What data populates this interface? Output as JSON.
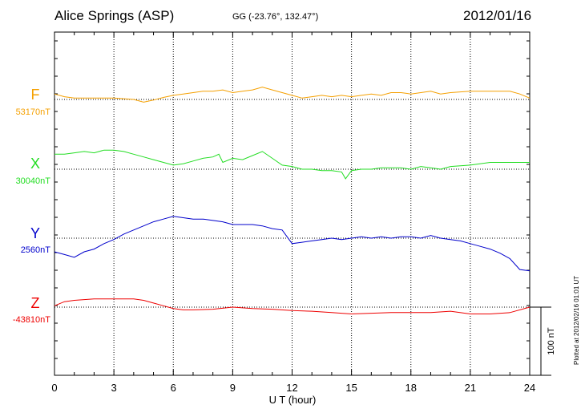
{
  "header": {
    "station": "Alice Springs (ASP)",
    "coords": "GG (-23.76°, 132.47°)",
    "date": "2012/01/16"
  },
  "plotted_note": "Plotted at 2012/02/16 01:01 UT",
  "scale_label": "100 nT",
  "chart_data": {
    "type": "line",
    "xlabel": "U T (hour)",
    "xlim": [
      0,
      24
    ],
    "xticks": [
      "0",
      "3",
      "6",
      "9",
      "12",
      "15",
      "18",
      "21",
      "24"
    ],
    "scale_bar_nT": 100,
    "grid": true,
    "series": [
      {
        "name": "F",
        "baseline_label": "53170nT",
        "color": "#f5a000",
        "x": [
          0,
          0.5,
          1,
          2,
          3,
          4,
          4.5,
          5,
          5.5,
          6,
          6.5,
          7,
          7.5,
          8,
          8.5,
          9,
          9.5,
          10,
          10.5,
          11,
          11.5,
          12,
          12.5,
          13,
          13.5,
          14,
          14.5,
          15,
          15.5,
          16,
          16.5,
          17,
          17.5,
          18,
          18.5,
          19,
          19.5,
          20,
          21,
          22,
          23,
          23.5,
          24
        ],
        "y": [
          8,
          4,
          2,
          2,
          2,
          0,
          -4,
          -1,
          3,
          6,
          8,
          10,
          12,
          12,
          14,
          10,
          12,
          14,
          18,
          14,
          10,
          6,
          2,
          4,
          6,
          4,
          6,
          4,
          6,
          8,
          6,
          10,
          10,
          8,
          10,
          12,
          8,
          10,
          12,
          12,
          12,
          8,
          2
        ]
      },
      {
        "name": "X",
        "baseline_label": "30040nT",
        "color": "#22dd22",
        "x": [
          0,
          0.5,
          1,
          1.5,
          2,
          2.5,
          3,
          3.5,
          4,
          4.5,
          5,
          5.5,
          6,
          6.5,
          7,
          7.5,
          8,
          8.3,
          8.5,
          9,
          9.5,
          10,
          10.5,
          11,
          11.5,
          12,
          12.5,
          13,
          13.5,
          14,
          14.5,
          14.7,
          15,
          15.5,
          16,
          16.5,
          17,
          17.5,
          18,
          18.5,
          19,
          19.5,
          20,
          21,
          22,
          23,
          24
        ],
        "y": [
          22,
          22,
          24,
          26,
          24,
          28,
          28,
          26,
          22,
          18,
          14,
          10,
          6,
          8,
          12,
          16,
          18,
          22,
          10,
          16,
          14,
          20,
          26,
          16,
          6,
          4,
          0,
          0,
          -2,
          -2,
          -4,
          -14,
          -2,
          0,
          0,
          2,
          2,
          2,
          0,
          4,
          2,
          0,
          4,
          6,
          10,
          10,
          10
        ]
      },
      {
        "name": "Y",
        "baseline_label": "2560nT",
        "color": "#0000cc",
        "x": [
          0,
          0.5,
          1,
          1.5,
          2,
          2.5,
          3,
          3.5,
          4,
          4.5,
          5,
          5.5,
          6,
          6.5,
          7,
          7.5,
          8,
          8.5,
          9,
          9.5,
          10,
          10.5,
          11,
          11.5,
          12,
          12.5,
          13,
          13.5,
          14,
          14.5,
          15,
          15.5,
          16,
          16.5,
          17,
          17.5,
          18,
          18.5,
          19,
          19.5,
          20,
          20.5,
          21,
          21.5,
          22,
          22.5,
          23,
          23.5,
          24
        ],
        "y": [
          -20,
          -24,
          -28,
          -20,
          -16,
          -8,
          -2,
          6,
          12,
          18,
          24,
          28,
          32,
          30,
          28,
          28,
          26,
          24,
          20,
          20,
          20,
          18,
          14,
          12,
          -8,
          -6,
          -4,
          -2,
          0,
          -2,
          0,
          2,
          0,
          2,
          0,
          2,
          2,
          0,
          4,
          0,
          -2,
          -4,
          -8,
          -12,
          -16,
          -22,
          -30,
          -46,
          -48
        ]
      },
      {
        "name": "Z",
        "baseline_label": "-43810nT",
        "color": "#ee0000",
        "x": [
          0,
          0.5,
          1,
          2,
          3,
          4,
          4.5,
          5,
          5.5,
          6,
          6.5,
          7,
          8,
          9,
          10,
          11,
          12,
          13,
          14,
          15,
          16,
          17,
          18,
          19,
          20,
          21,
          22,
          23,
          24
        ],
        "y": [
          2,
          8,
          10,
          12,
          12,
          12,
          10,
          6,
          2,
          -2,
          -4,
          -4,
          -3,
          0,
          -2,
          -3,
          -5,
          -6,
          -8,
          -10,
          -9,
          -8,
          -8,
          -8,
          -6,
          -10,
          -10,
          -8,
          0
        ]
      }
    ]
  }
}
